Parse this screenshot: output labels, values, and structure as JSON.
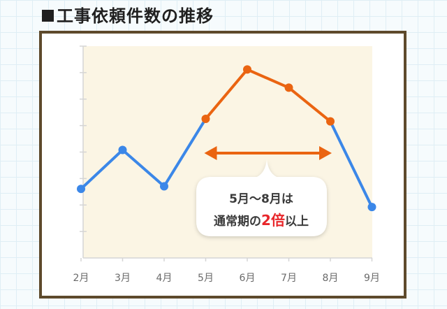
{
  "header": {
    "title": "工事依頼件数の推移"
  },
  "chart_data": {
    "type": "line",
    "title": "工事依頼件数の推移",
    "categories": [
      "2月",
      "3月",
      "4月",
      "5月",
      "6月",
      "7月",
      "8月",
      "9月"
    ],
    "values": [
      2.5,
      4.0,
      2.6,
      5.2,
      7.1,
      6.4,
      5.1,
      1.8
    ],
    "ylim": [
      0,
      8
    ],
    "y_tick_count": 8,
    "y_tick_labels_shown": false,
    "grid": false,
    "highlight_range": [
      "5月",
      "8月"
    ],
    "colors": {
      "normal_series": "#3b87e8",
      "peak_series": "#ea6411",
      "arrow": "#ea6411",
      "plot_background": "#fbf5e4",
      "axis": "#d5d5d5",
      "highlight_text": "#e8262a"
    },
    "annotation": {
      "line1": "5月〜8月は",
      "line2_prefix": "通常期の",
      "line2_highlight": "2倍",
      "line2_suffix": "以上"
    }
  }
}
